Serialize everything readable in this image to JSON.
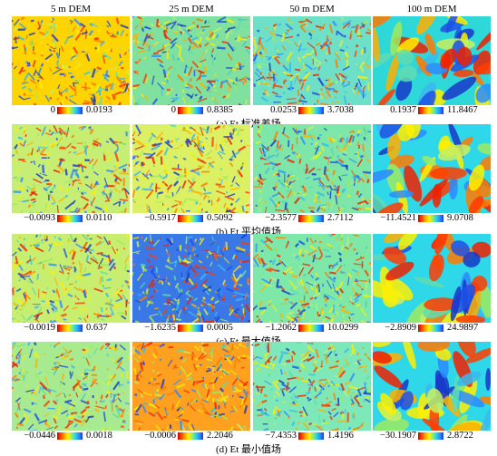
{
  "column_headers": [
    "5 m DEM",
    "25 m DEM",
    "50 m DEM",
    "100 m DEM"
  ],
  "rows": [
    {
      "caption": "(a) Et 标准差场",
      "scales": [
        {
          "min": "0",
          "max": "0.0193"
        },
        {
          "min": "0",
          "max": "0.8385"
        },
        {
          "min": "0.0253",
          "max": "3.7038"
        },
        {
          "min": "0.1937",
          "max": "11.8467"
        }
      ]
    },
    {
      "caption": "(b) Et 平均值场",
      "scales": [
        {
          "min": "−0.0093",
          "max": "0.0110"
        },
        {
          "min": "−0.5917",
          "max": "0.5092"
        },
        {
          "min": "−2.3577",
          "max": "2.7112"
        },
        {
          "min": "−11.4521",
          "max": "9.0708"
        }
      ]
    },
    {
      "caption": "(c) Et 最大值场",
      "scales": [
        {
          "min": "−0.0019",
          "max": "0.637"
        },
        {
          "min": "−1.6235",
          "max": "0.0005"
        },
        {
          "min": "−1.2062",
          "max": "10.0299"
        },
        {
          "min": "−2.8909",
          "max": "24.9897"
        }
      ]
    },
    {
      "caption": "(d) Et 最小值场",
      "scales": [
        {
          "min": "−0.0446",
          "max": "0.0018"
        },
        {
          "min": "−0.0006",
          "max": "2.2046"
        },
        {
          "min": "−7.4353",
          "max": "1.4196"
        },
        {
          "min": "−30.1907",
          "max": "2.8722"
        }
      ]
    }
  ],
  "panel_styles": [
    [
      "#ffd400",
      "#7fe0a0",
      "#6fe0c8",
      "#2fd8d8"
    ],
    [
      "#c6ee74",
      "#dcf064",
      "#7ee6a8",
      "#2fd8e8"
    ],
    [
      "#c8ee70",
      "#3a78e8",
      "#7ee8a8",
      "#2fd8e8"
    ],
    [
      "#a8ea90",
      "#ffa020",
      "#7ee8b8",
      "#2fd8e8"
    ]
  ]
}
